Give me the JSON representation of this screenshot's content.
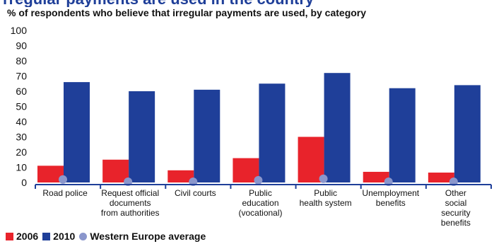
{
  "heading": "rregular payments are used in the country",
  "chart_data": {
    "type": "bar",
    "title": "% of respondents who believe that irregular payments are used, by category",
    "categories": [
      [
        "Road police"
      ],
      [
        "Request official",
        "documents",
        "from authorities"
      ],
      [
        "Civil courts"
      ],
      [
        "Public",
        "education",
        "(vocational)"
      ],
      [
        "Public",
        "health system"
      ],
      [
        "Unemployment",
        "benefits"
      ],
      [
        "Other",
        "social",
        "security",
        "benefits"
      ]
    ],
    "series": [
      {
        "name": "2006",
        "values": [
          11,
          15,
          8,
          16,
          30,
          7,
          6.5
        ]
      },
      {
        "name": "2010",
        "values": [
          66,
          60,
          61,
          65,
          72,
          62,
          64
        ]
      },
      {
        "name": "Western Europe average",
        "values": [
          1.5,
          0,
          0,
          1,
          2,
          0,
          0
        ]
      }
    ],
    "ylim": [
      0,
      100
    ],
    "yticks": [
      0,
      10,
      20,
      30,
      40,
      50,
      60,
      70,
      80,
      90,
      100
    ],
    "grid": false,
    "legend": "bottom-left"
  },
  "colors": {
    "s2006": "#e8232b",
    "s2010": "#1f3f99",
    "avg": "#8a96cc",
    "axis": "#1f3f99",
    "text": "#111111"
  }
}
